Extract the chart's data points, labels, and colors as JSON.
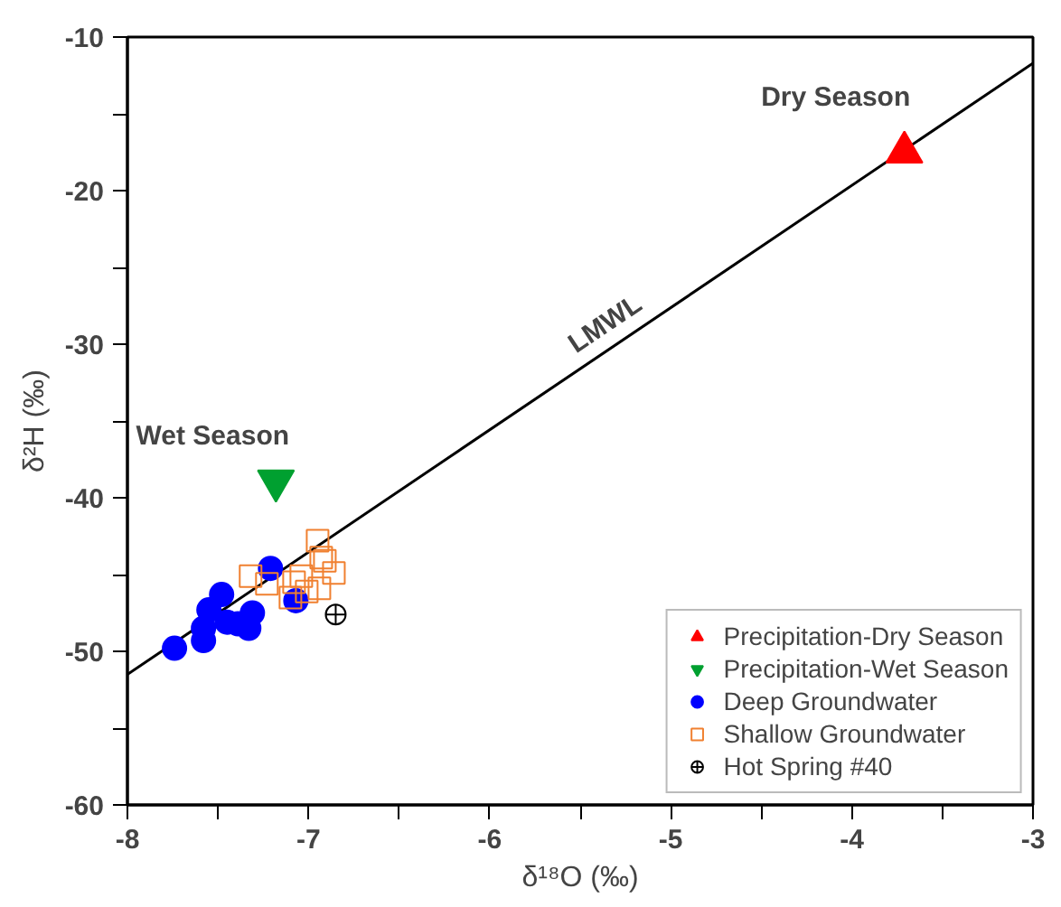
{
  "chart_data": {
    "type": "scatter",
    "xlabel": "δ¹⁸O (‰)",
    "ylabel": "δ²H (‰)",
    "xlim": [
      -8,
      -3
    ],
    "ylim": [
      -60,
      -10
    ],
    "xticks": [
      -8,
      {
        "value": -7.5,
        "label": null
      },
      -7,
      {
        "value": -6.5,
        "label": null
      },
      -6,
      {
        "value": -5.5,
        "label": null
      },
      -5,
      {
        "value": -4.5,
        "label": null
      },
      -4,
      {
        "value": -3.5,
        "label": null
      },
      -3
    ],
    "yticks": [
      -60,
      {
        "value": -55,
        "label": null
      },
      -50,
      {
        "value": -45,
        "label": null
      },
      -40,
      {
        "value": -35,
        "label": null
      },
      -30,
      {
        "value": -25,
        "label": null
      },
      -20,
      {
        "value": -15,
        "label": null
      },
      -10
    ],
    "grid": false,
    "legend": "bottom right",
    "series": [
      {
        "name": "LMWL",
        "type": "line",
        "color": "#000000",
        "marker": "none",
        "line_style": "solid",
        "x": [
          -8,
          -3
        ],
        "values": [
          -51.5,
          -11.7
        ]
      },
      {
        "name": "Precipitation-Dry Season",
        "marker": "triangle",
        "color": "#ff0000",
        "x": [
          -3.71
        ],
        "values": [
          -17.5
        ]
      },
      {
        "name": "Precipitation-Wet Season",
        "marker": "triangle",
        "color": "#00a030",
        "x": [
          -7.18
        ],
        "values": [
          -38.9
        ]
      },
      {
        "name": "Deep Groundwater",
        "marker": "circle",
        "color": "#0000ff",
        "x": [
          -7.74,
          -7.58,
          -7.58,
          -7.55,
          -7.48,
          -7.45,
          -7.39,
          -7.33,
          -7.31,
          -7.21,
          -7.07
        ],
        "values": [
          -49.8,
          -49.3,
          -48.5,
          -47.3,
          -46.3,
          -48.1,
          -48.2,
          -48.5,
          -47.5,
          -44.6,
          -46.7
        ]
      },
      {
        "name": "Shallow Groundwater",
        "marker": "square",
        "color": "#f08030",
        "x": [
          -7.32,
          -7.23,
          -7.08,
          -7.1,
          -7.01,
          -6.95,
          -6.93,
          -6.91,
          -6.86,
          -6.94,
          -7.04
        ],
        "values": [
          -45.1,
          -45.6,
          -45.5,
          -46.5,
          -46.1,
          -42.8,
          -43.9,
          -44.1,
          -44.9,
          -45.9,
          -45.1
        ]
      },
      {
        "name": "Hot Spring #40",
        "marker": "circle",
        "color": "#000000",
        "x": [
          -6.85
        ],
        "values": [
          -47.6
        ]
      }
    ],
    "annotations": [
      {
        "text": "Dry Season",
        "x": -3.71,
        "y": -17.5
      },
      {
        "text": "Wet Season",
        "x": -7.18,
        "y": -38.9
      }
    ]
  }
}
